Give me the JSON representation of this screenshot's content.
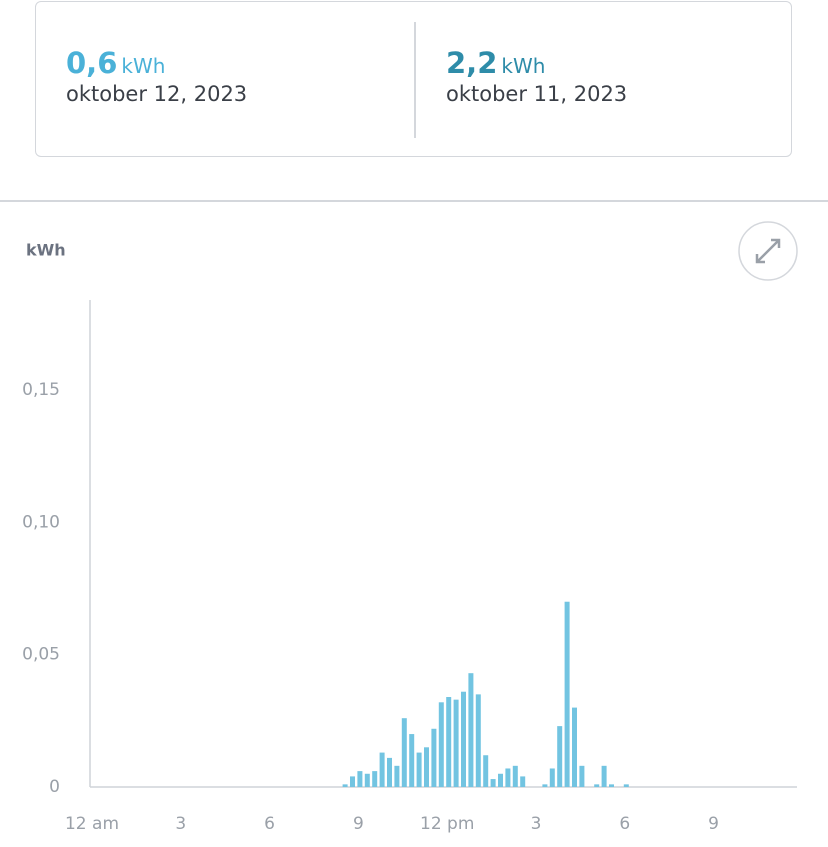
{
  "summary": [
    {
      "value": "0,6",
      "unit": "kWh",
      "date": "oktober 12, 2023",
      "color": "#4ab1d8"
    },
    {
      "value": "2,2",
      "unit": "kWh",
      "date": "oktober 11, 2023",
      "color": "#2e8ca9"
    }
  ],
  "chart_data": {
    "type": "bar",
    "ylabel": "kWh",
    "color": "#72c4e1",
    "categories": [
      "12 am",
      null,
      null,
      null,
      null,
      null,
      null,
      null,
      null,
      null,
      null,
      null,
      "3",
      null,
      null,
      null,
      null,
      null,
      null,
      null,
      null,
      null,
      null,
      null,
      "6",
      null,
      null,
      null,
      null,
      null,
      null,
      null,
      null,
      null,
      null,
      null,
      "9",
      null,
      null,
      null,
      null,
      null,
      null,
      null,
      null,
      null,
      null,
      null,
      "12 pm",
      null,
      null,
      null,
      null,
      null,
      null,
      null,
      null,
      null,
      null,
      null,
      "3",
      null,
      null,
      null,
      null,
      null,
      null,
      null,
      null,
      null,
      null,
      null,
      "6",
      null,
      null,
      null,
      null,
      null,
      null,
      null,
      null,
      null,
      null,
      null,
      "9",
      null,
      null,
      null,
      null,
      null,
      null,
      null,
      null,
      null,
      null,
      null
    ],
    "values": [
      0,
      0,
      0,
      0,
      0,
      0,
      0,
      0,
      0,
      0,
      0,
      0,
      0,
      0,
      0,
      0,
      0,
      0,
      0,
      0,
      0,
      0,
      0,
      0,
      0,
      0,
      0,
      0,
      0,
      0,
      0,
      0,
      0,
      0,
      0.001,
      0.004,
      0.006,
      0.005,
      0.006,
      0.013,
      0.011,
      0.008,
      0.026,
      0.02,
      0.013,
      0.015,
      0.022,
      0.032,
      0.034,
      0.033,
      0.036,
      0.043,
      0.035,
      0.012,
      0.003,
      0.005,
      0.007,
      0.008,
      0.004,
      0,
      0,
      0.001,
      0.007,
      0.023,
      0.07,
      0.03,
      0.008,
      0,
      0.001,
      0.008,
      0.001,
      0,
      0.001,
      0,
      0,
      0,
      0,
      0,
      0,
      0,
      0,
      0,
      0,
      0,
      0,
      0,
      0,
      0,
      0,
      0,
      0,
      0,
      0,
      0,
      0,
      0
    ],
    "ylim": [
      0,
      0.184
    ],
    "yticks": [
      0,
      {
        "value": 0.05,
        "label": "0,05"
      },
      {
        "value": 0.1,
        "label": "0,10"
      },
      {
        "value": 0.15,
        "label": "0,15"
      }
    ]
  }
}
